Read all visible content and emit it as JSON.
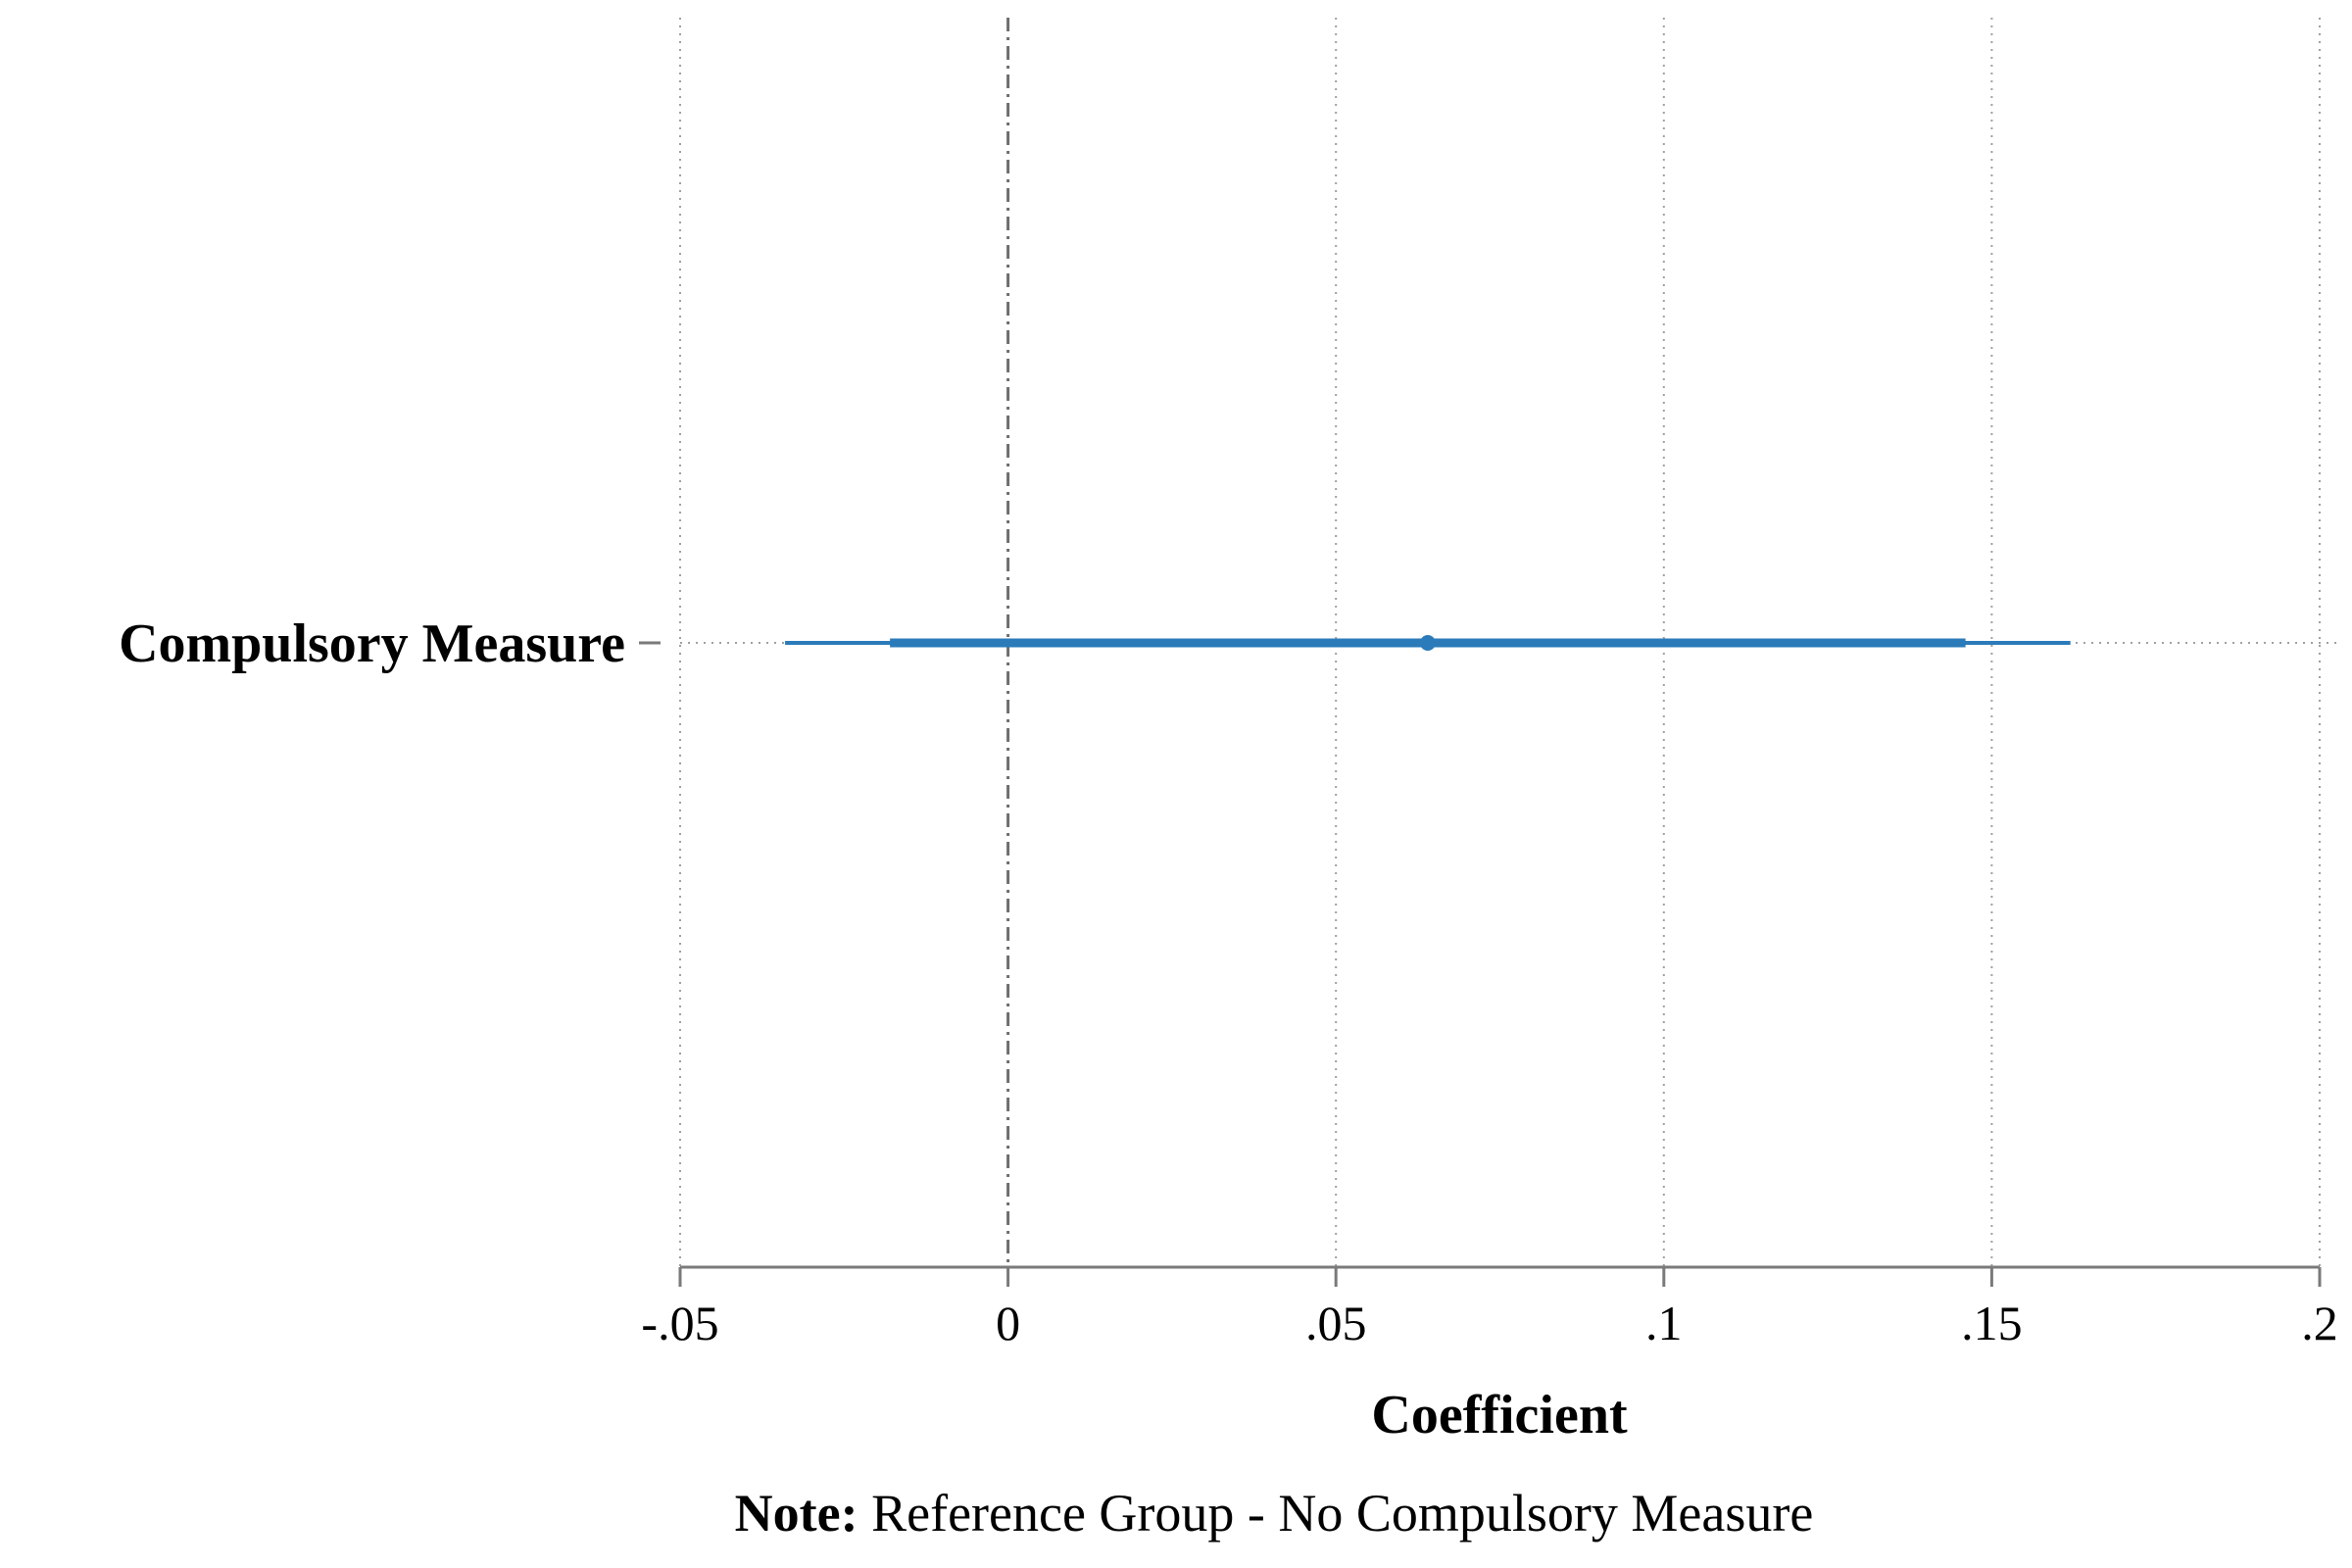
{
  "chart_data": {
    "type": "coefficient-plot",
    "xlabel": "Coefficient",
    "xlim": [
      -0.05,
      0.2
    ],
    "xticks": [
      {
        "value": -0.05,
        "label": "-.05"
      },
      {
        "value": 0,
        "label": "0"
      },
      {
        "value": 0.05,
        "label": ".05"
      },
      {
        "value": 0.1,
        "label": ".1"
      },
      {
        "value": 0.15,
        "label": ".15"
      },
      {
        "value": 0.2,
        "label": ".2"
      }
    ],
    "reference_line": 0,
    "grid": true,
    "series": [
      {
        "category": "Compulsory Measure",
        "estimate": 0.064,
        "ci_inner": [
          -0.018,
          0.146
        ],
        "ci_outer": [
          -0.034,
          0.162
        ]
      }
    ],
    "color": "#2b7bba"
  },
  "note": {
    "label": "Note:",
    "text": " Reference Group - No Compulsory Measure"
  }
}
